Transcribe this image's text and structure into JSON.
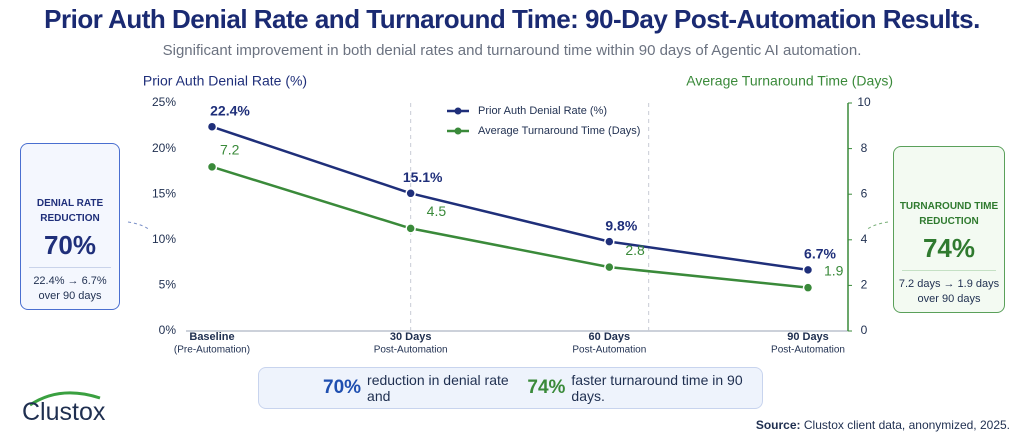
{
  "title": "Prior Auth Denial Rate and Turnaround Time: 90-Day Post-Automation Results.",
  "subtitle": "Significant improvement in both denial rates and turnaround time within 90 days of Agentic AI automation.",
  "chart_data": {
    "type": "line",
    "y_label": "Prior Auth Denial Rate (%)",
    "y2_label": "Average Turnaround Time (Days)",
    "categories": [
      "Baseline",
      "30 Days",
      "60 Days",
      "90 Days"
    ],
    "category_sublabels": [
      "(Pre-Automation)",
      "Post-Automation",
      "Post-Automation",
      "Post-Automation"
    ],
    "series": [
      {
        "name": "Prior Auth Denial Rate (%)",
        "color": "#1f2f7a",
        "values": [
          22.4,
          15.1,
          9.8,
          6.7
        ],
        "value_labels": [
          "22.4%",
          "15.1%",
          "9.8%",
          "6.7%"
        ]
      },
      {
        "name": "Average Turnaround Time (Days)",
        "color": "#3a8a3a",
        "axis": "y2",
        "values": [
          7.2,
          4.5,
          2.8,
          1.9
        ]
      }
    ],
    "ylim": [
      0,
      25
    ],
    "yticks": [
      {
        "value": 0,
        "label": "0%"
      },
      {
        "value": 5,
        "label": "5%"
      },
      {
        "value": 10,
        "label": "10%"
      },
      {
        "value": 15,
        "label": "15%"
      },
      {
        "value": 20,
        "label": "20%"
      },
      {
        "value": 25,
        "label": "25%"
      }
    ],
    "y2lim": [
      0,
      10
    ],
    "y2ticks": [
      0,
      2,
      4,
      6,
      8,
      10
    ],
    "grid": false,
    "legend": "top"
  },
  "cards": [
    {
      "title": "DENIAL RATE REDUCTION",
      "value": "70%",
      "detail": "22.4% → 6.7%",
      "period": "over 90 days"
    },
    {
      "title": "TURNAROUND TIME REDUCTION",
      "value": "74%",
      "detail": "7.2 days → 1.9 days",
      "period": "over 90 days"
    }
  ],
  "banner": {
    "value1": "70%",
    "text1": "reduction in denial rate and",
    "value2": "74%",
    "text2": "faster turnaround time in 90 days."
  },
  "source": {
    "label": "Source:",
    "text": "Clustox client data, anonymized, 2025."
  },
  "logo": "Clustox"
}
